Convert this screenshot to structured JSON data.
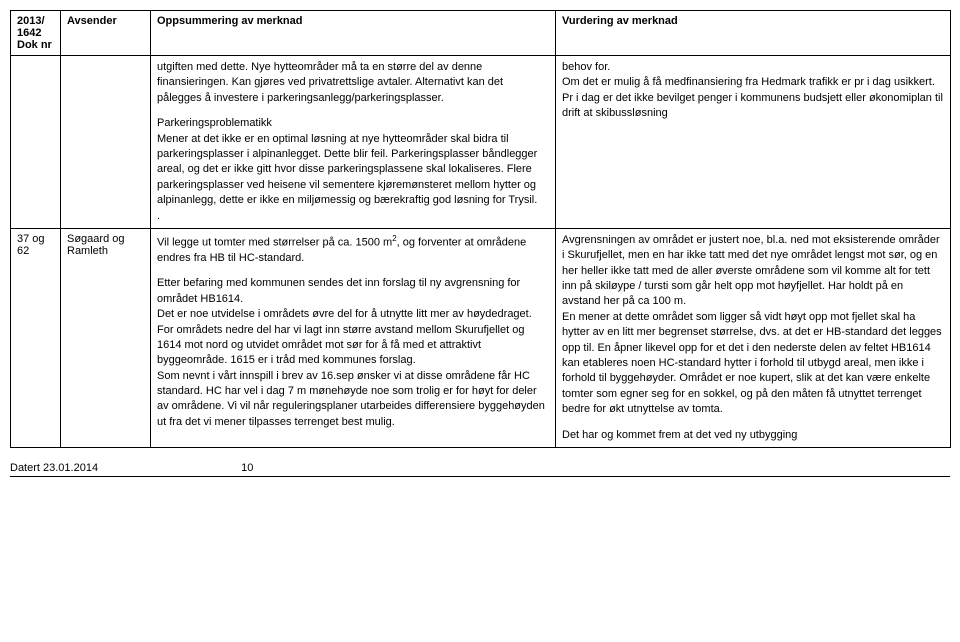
{
  "header": {
    "doknr_line1": "2013/",
    "doknr_line2": "1642",
    "doknr_line3": "Dok nr",
    "avsender": "Avsender",
    "oppsummering": "Oppsummering av merknad",
    "vurdering": "Vurdering av merknad"
  },
  "rows": [
    {
      "doknr": "",
      "avsender": "",
      "opps_p1": "utgiften med dette. Nye hytteområder må ta en større del av denne finansieringen. Kan gjøres ved privatrettslige avtaler. Alternativt kan det pålegges å investere i parkeringsanlegg/parkeringsplasser.",
      "opps_p2": "Parkeringsproblematikk",
      "opps_p3": "Mener at det ikke er en optimal løsning at nye hytteområder skal bidra til parkeringsplasser i alpinanlegget. Dette blir feil. Parkeringsplasser båndlegger areal, og det er ikke gitt hvor disse parkeringsplassene skal lokaliseres. Flere parkeringsplasser ved heisene vil sementere kjøremønsteret mellom hytter og alpinanlegg, dette er ikke en miljømessig og bærekraftig god løsning for Trysil.",
      "opps_dot": ".",
      "vurd_p1": "behov for.",
      "vurd_p2": "Om det er mulig å få medfinansiering fra Hedmark trafikk er pr i dag usikkert. Pr i dag er det ikke bevilget penger i kommunens budsjett eller økonomiplan til drift at skibussløsning"
    },
    {
      "doknr": "37 og 62",
      "avsender": "Søgaard og Ramleth",
      "opps_p1_pre": "Vil legge ut tomter med størrelser på ca. 1500 m",
      "opps_p1_post": ", og forventer at områdene endres fra HB til HC-standard.",
      "opps_p2": "Etter befaring med kommunen sendes det inn forslag til ny avgrensning for området HB1614.",
      "opps_p3": "Det er noe utvidelse i områdets øvre del for å utnytte litt mer av høydedraget. For områdets nedre del har vi lagt inn større avstand mellom Skurufjellet og 1614 mot nord og utvidet området mot sør for å få med et attraktivt byggeområde. 1615 er i tråd med kommunes forslag.",
      "opps_p4": "Som nevnt i vårt innspill i brev av 16.sep ønsker vi at disse områdene får HC standard. HC har vel i dag 7 m mønehøyde noe som trolig er for høyt for deler av områdene. Vi vil når reguleringsplaner utarbeides differensiere byggehøyden ut fra det vi mener tilpasses terrenget best mulig.",
      "vurd_p1": "Avgrensningen av området er justert noe, bl.a. ned mot eksisterende områder i Skurufjellet, men en har ikke tatt med det nye området lengst mot sør, og en her heller ikke tatt med de aller øverste områdene som vil komme alt for tett inn på skiløype / tursti som går helt opp mot høyfjellet. Har holdt på en avstand her på ca 100 m.",
      "vurd_p2": "En mener at dette området som ligger så vidt høyt opp mot fjellet skal ha hytter av en litt mer begrenset størrelse, dvs. at det er HB-standard det legges opp til. En åpner likevel opp for et det i den nederste delen av feltet HB1614 kan etableres noen HC-standard hytter i forhold til utbygd areal, men ikke i forhold til byggehøyder. Området er noe kupert, slik at det kan være enkelte tomter som egner seg for en sokkel, og på den måten få utnyttet terrenget bedre for økt utnyttelse av tomta.",
      "vurd_p3": "Det har og kommet frem at det ved ny utbygging"
    }
  ],
  "footer": {
    "date": "Datert 23.01.2014",
    "page": "10"
  }
}
